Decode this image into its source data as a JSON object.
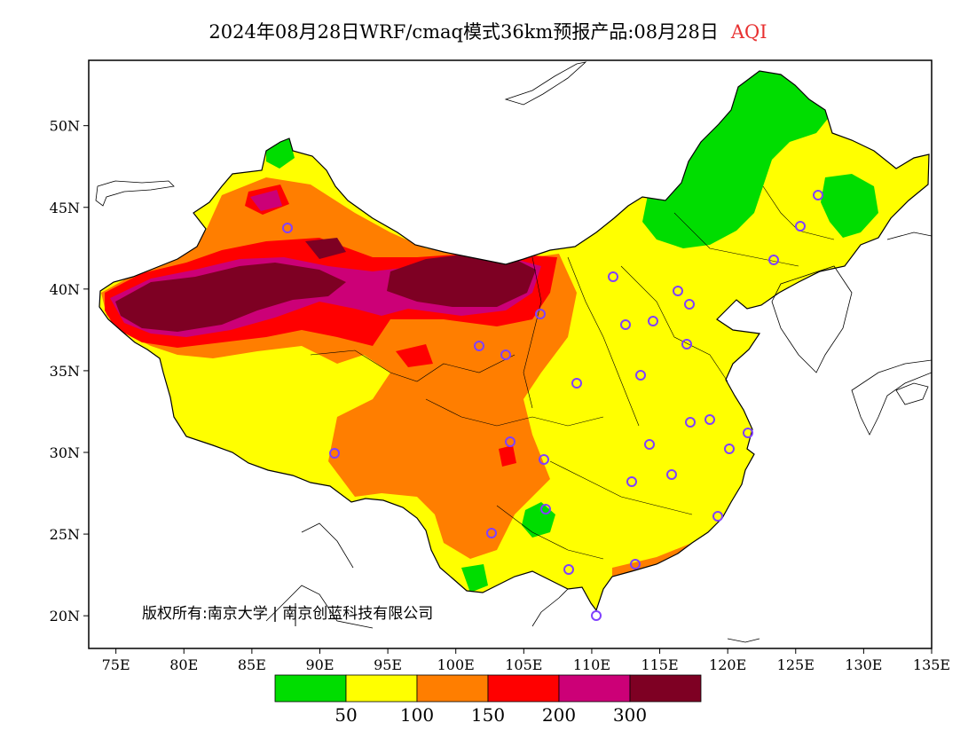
{
  "title": {
    "main": "2024年08月28日WRF/cmaq模式36km预报产品:08月28日",
    "variable": "AQI",
    "variable_color": "#e83030"
  },
  "axes": {
    "x_ticks": [
      "75E",
      "80E",
      "85E",
      "90E",
      "95E",
      "100E",
      "105E",
      "110E",
      "115E",
      "120E",
      "125E",
      "130E",
      "135E"
    ],
    "y_ticks": [
      "50N",
      "45N",
      "40N",
      "35N",
      "30N",
      "25N",
      "20N"
    ],
    "lon_range": [
      73,
      135
    ],
    "lat_range": [
      18,
      54
    ]
  },
  "legend": {
    "colors": [
      "#00dd00",
      "#ffff00",
      "#ff7e00",
      "#ff0000",
      "#cc0077",
      "#7e0023"
    ],
    "breaks": [
      "50",
      "100",
      "150",
      "200",
      "300"
    ]
  },
  "copyright": "版权所有:南京大学 | 南京创蓝科技有限公司",
  "colors": {
    "good": "#00dd00",
    "moderate": "#ffff00",
    "sensitive": "#ff7e00",
    "unhealthy": "#ff0000",
    "very_unhealthy": "#cc0077",
    "hazardous": "#7e0023"
  }
}
